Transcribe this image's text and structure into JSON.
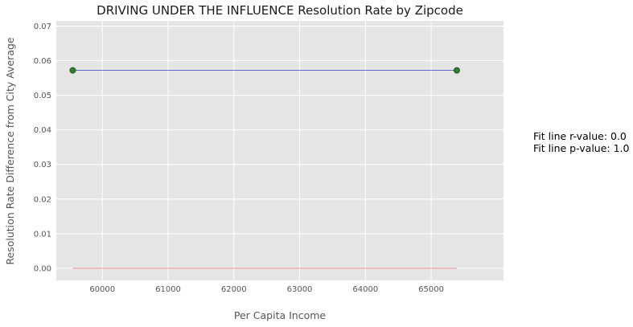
{
  "chart_data": {
    "type": "scatter",
    "title": "DRIVING UNDER THE INFLUENCE Resolution Rate by Zipcode",
    "xlabel": "Per Capita Income",
    "ylabel": "Resolution Rate Difference from City Average",
    "xlim": [
      59300,
      66100
    ],
    "ylim": [
      -0.0035,
      0.0715
    ],
    "xticks": [
      60000,
      61000,
      62000,
      63000,
      64000,
      65000
    ],
    "yticks": [
      0.0,
      0.01,
      0.02,
      0.03,
      0.04,
      0.05,
      0.06,
      0.07
    ],
    "xtick_labels": [
      "60000",
      "61000",
      "62000",
      "63000",
      "64000",
      "65000"
    ],
    "ytick_labels": [
      "0.00",
      "0.01",
      "0.02",
      "0.03",
      "0.04",
      "0.05",
      "0.06",
      "0.07"
    ],
    "grid": true,
    "series": [
      {
        "kind": "scatter",
        "x": [
          59550,
          65390
        ],
        "y": [
          0.0572,
          0.0572
        ],
        "color": "#2e7d32"
      },
      {
        "kind": "fit-line",
        "x": [
          59550,
          65390
        ],
        "y": [
          0.0572,
          0.0572
        ],
        "color": "#4a5ad8"
      },
      {
        "kind": "zero-line",
        "x": [
          59550,
          65390
        ],
        "y": [
          0.0,
          0.0
        ],
        "color": "#f08080"
      }
    ],
    "annotations": [
      "Fit line r-value: 0.0",
      "Fit line p-value: 1.0"
    ],
    "colors": {
      "plot_background": "#e5e5e5",
      "grid": "#ffffff"
    }
  }
}
